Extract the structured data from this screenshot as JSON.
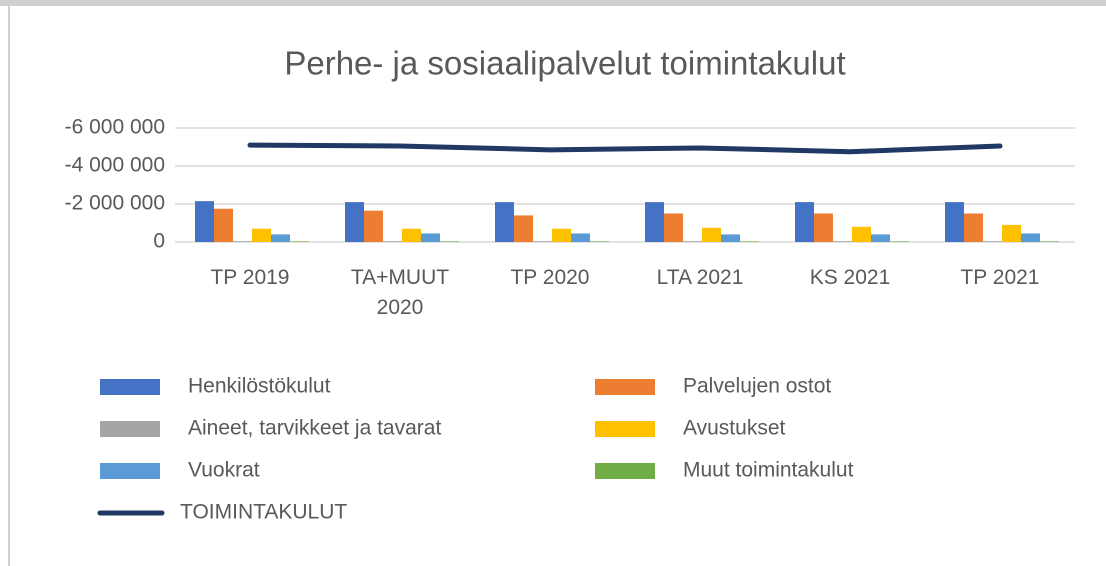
{
  "chart_data": {
    "type": "bar",
    "title": "Perhe- ja sosiaalipalvelut toimintakulut",
    "categories": [
      "TP 2019",
      "TA+MUUT 2020",
      "TP 2020",
      "LTA 2021",
      "KS 2021",
      "TP 2021"
    ],
    "series": [
      {
        "name": "Henkilöstökulut",
        "color": "#4472c4",
        "values": [
          -2150000,
          -2100000,
          -2100000,
          -2100000,
          -2100000,
          -2100000
        ]
      },
      {
        "name": "Palvelujen ostot",
        "color": "#ed7d31",
        "values": [
          -1750000,
          -1650000,
          -1400000,
          -1500000,
          -1500000,
          -1500000
        ]
      },
      {
        "name": "Aineet, tarvikkeet ja tavarat",
        "color": "#a5a5a5",
        "values": [
          -40000,
          -40000,
          -40000,
          -40000,
          -40000,
          -40000
        ]
      },
      {
        "name": "Avustukset",
        "color": "#ffc000",
        "values": [
          -700000,
          -700000,
          -700000,
          -750000,
          -800000,
          -900000
        ]
      },
      {
        "name": "Vuokrat",
        "color": "#5b9bd5",
        "values": [
          -400000,
          -450000,
          -450000,
          -400000,
          -400000,
          -450000
        ]
      },
      {
        "name": "Muut toimintakulut",
        "color": "#70ad47",
        "values": [
          -30000,
          -30000,
          -30000,
          -30000,
          -30000,
          -30000
        ]
      },
      {
        "name": "TOIMINTAKULUT",
        "type": "line",
        "color": "#203864",
        "values": [
          -5100000,
          -5050000,
          -4850000,
          -4950000,
          -4750000,
          -5050000
        ]
      }
    ],
    "ylim": [
      0,
      -6000000
    ],
    "yticks": [
      {
        "value": 0,
        "label": "0"
      },
      {
        "value": -2000000,
        "label": "-2 000 000"
      },
      {
        "value": -4000000,
        "label": "-4 000 000"
      },
      {
        "value": -6000000,
        "label": "-6 000 000"
      }
    ],
    "grid": true,
    "legend": "bottom"
  }
}
